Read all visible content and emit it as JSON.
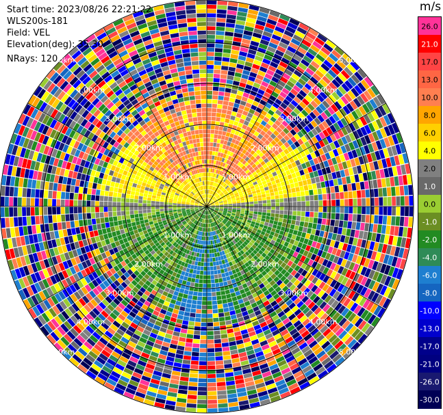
{
  "header": {
    "start_time": "Start time: 2023/08/26 22:21:22",
    "site": "WLS200s-181",
    "field": "Field: VEL",
    "elevation": "Elevation(deg): 35.30",
    "nrays": "NRays: 120"
  },
  "range_rings": [
    "1.00km",
    "2.00km",
    "3.00km",
    "4.00km",
    "5.00km"
  ],
  "colorbar": {
    "unit": "m/s",
    "segments": [
      {
        "color": "#ff3399"
      },
      {
        "color": "#ff0000"
      },
      {
        "color": "#ff4444"
      },
      {
        "color": "#ff6644"
      },
      {
        "color": "#ff7f50"
      },
      {
        "color": "#ffa500"
      },
      {
        "color": "#ffd000"
      },
      {
        "color": "#ffff00"
      },
      {
        "color": "#808080"
      },
      {
        "color": "#696969"
      },
      {
        "color": "#9acd32"
      },
      {
        "color": "#6b8e23"
      },
      {
        "color": "#228b22"
      },
      {
        "color": "#2e8b57"
      },
      {
        "color": "#1e7fd0"
      },
      {
        "color": "#1565c0"
      },
      {
        "color": "#0000ff"
      },
      {
        "color": "#0000cd"
      },
      {
        "color": "#00008b"
      },
      {
        "color": "#000080"
      },
      {
        "color": "#191970"
      },
      {
        "color": "#000055"
      }
    ],
    "ticks": [
      "26.0",
      "21.0",
      "17.0",
      "13.0",
      "10.0",
      "8.0",
      "6.0",
      "4.0",
      "2.0",
      "1.0",
      "0.0",
      "-1.0",
      "-2.0",
      "-4.0",
      "-6.0",
      "-8.0",
      "-10.0",
      "-13.0",
      "-17.0",
      "-21.0",
      "-26.0",
      "-30.0"
    ]
  }
}
